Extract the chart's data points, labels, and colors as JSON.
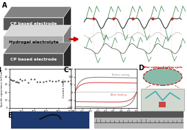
{
  "background_color": "#f0f0f0",
  "panel_A": {
    "label": "A",
    "layers": [
      {
        "label": "CP based electrode",
        "color": "#555555"
      },
      {
        "label": "Hydrogel electrolyte",
        "color": "#aaaaaa"
      },
      {
        "label": "CP based electrode",
        "color": "#555555"
      }
    ],
    "arrow_color": "#cc0000"
  },
  "panel_B": {
    "label": "B",
    "xlabel": "Cycles number",
    "ylabel": "Specific capacitance (mF/cm²)",
    "ylim": [
      0,
      50
    ],
    "xlim": [
      0,
      1000
    ],
    "y_ticks": [
      0,
      10,
      20,
      30,
      40,
      50
    ],
    "x_ticks": [
      0,
      200,
      400,
      600,
      800,
      1000
    ],
    "data_y": 35
  },
  "panel_C": {
    "label": "C",
    "xlabel": "Potential (V)",
    "ylabel": "Current (mA)",
    "before_color": "#888888",
    "after_color": "#e05050",
    "before_label": "Before cutting",
    "after_label": "After healing",
    "xlim": [
      0.0,
      0.8
    ],
    "ylim": [
      -100,
      150
    ]
  },
  "panel_D": {
    "label": "D",
    "title": "After cutting-healing cycle",
    "title_color": "#cc0000",
    "ellipse_color": "#cc0000",
    "photo_top_color": "#7aaa99",
    "photo_bottom_color": "#c8d4c8",
    "wire_color": "#44aaaa",
    "device_color": "#884444"
  },
  "panel_E": {
    "label": "E",
    "photo1_bg": "#1a3a6a",
    "photo1_obj": "#111111",
    "photo2_bg": "#c8c8c8"
  }
}
